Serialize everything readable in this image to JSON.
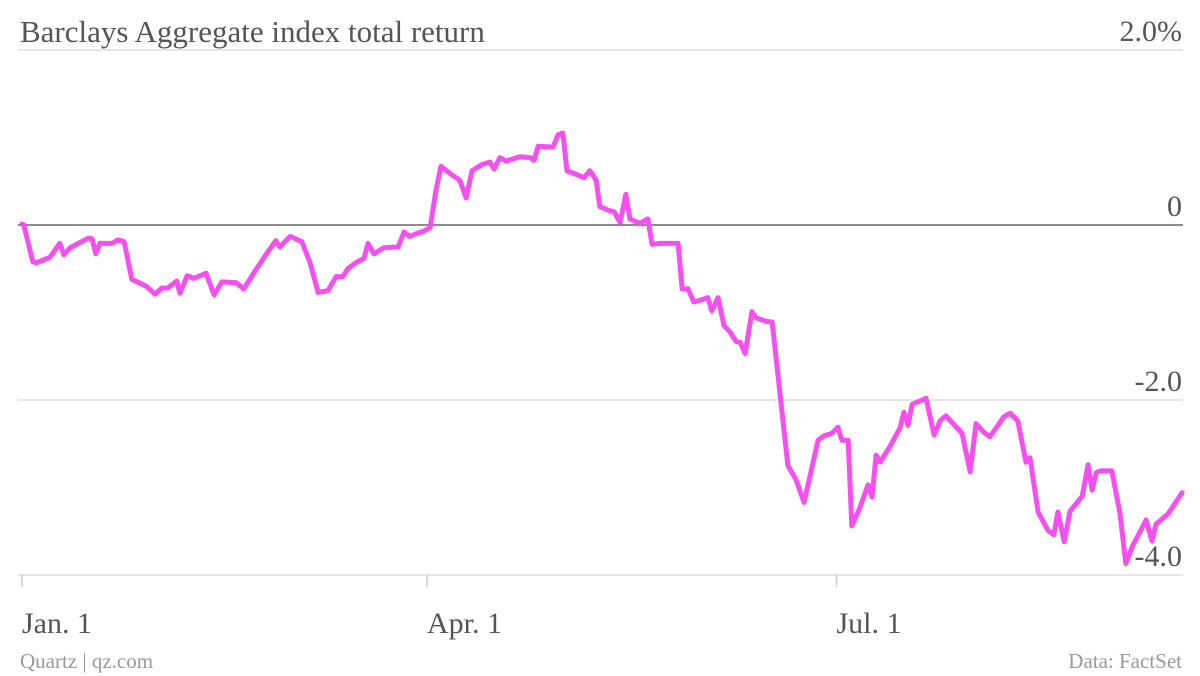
{
  "chart_data": {
    "type": "line",
    "title": "Barclays Aggregate index total return",
    "credit": "Quartz | qz.com",
    "source": "Data: FactSet",
    "xlim": [
      0,
      258
    ],
    "xticks": [
      {
        "value": 0,
        "label": "Jan. 1"
      },
      {
        "value": 90,
        "label": "Apr. 1"
      },
      {
        "value": 181,
        "label": "Jul. 1"
      }
    ],
    "ylim": [
      -4,
      2
    ],
    "yticks": [
      {
        "value": 2,
        "label": "2.0%"
      },
      0,
      {
        "value": -2,
        "label": "-2.0"
      },
      {
        "value": -4,
        "label": "-4.0"
      }
    ],
    "grid": true,
    "series": [
      {
        "color": "#f550ef",
        "x": [
          0,
          0.4,
          2.4,
          3.3,
          6.2,
          8.4,
          9.3,
          10.7,
          13.3,
          14.7,
          15.6,
          16.4,
          17.3,
          20,
          21.3,
          22.7,
          24.4,
          27.6,
          29.6,
          31.1,
          32.4,
          34.4,
          35.1,
          36.7,
          38.2,
          39.6,
          40.9,
          42.7,
          44.4,
          47.6,
          49.3,
          52,
          54.2,
          56.4,
          57.3,
          59.6,
          62.2,
          64,
          65.8,
          68,
          69.8,
          71.3,
          72.4,
          74.2,
          76,
          76.9,
          78.2,
          80.4,
          83.6,
          84.9,
          86.2,
          87.6,
          89.3,
          90.7,
          92,
          93.1,
          95.1,
          97.3,
          98.7,
          100,
          102.2,
          104,
          104.9,
          106.2,
          107.6,
          110.7,
          112.9,
          113.8,
          114.7,
          118,
          119.1,
          120.2,
          121.1,
          123.6,
          124.9,
          126.2,
          127.6,
          128.4,
          130.2,
          131.6,
          132.9,
          134.2,
          135.1,
          137.3,
          139.1,
          140,
          141.8,
          145.8,
          146.7,
          148,
          149.3,
          150.7,
          152.4,
          153.3,
          154.7,
          156,
          157.3,
          158.7,
          159.6,
          160.7,
          162.2,
          163.1,
          165.3,
          166.7,
          170.2,
          172,
          173.8,
          176.9,
          178.2,
          180,
          181.3,
          182.2,
          183.6,
          184.4,
          186.2,
          188,
          188.9,
          189.8,
          190.7,
          192.9,
          195.1,
          196,
          196.9,
          197.8,
          200.9,
          202.7,
          204,
          205.3,
          208.9,
          210.7,
          212,
          213.8,
          215.1,
          218.2,
          219.6,
          221.3,
          223.1,
          224,
          225.8,
          228,
          229.3,
          230.2,
          231.6,
          232.9,
          235.6,
          236.9,
          237.8,
          238.7,
          239.6,
          242.2,
          244,
          245.3,
          246.7,
          248.4,
          249.8,
          251.1,
          252,
          254.7,
          257.8
        ],
        "values": [
          0.01,
          0,
          -0.42,
          -0.43,
          -0.37,
          -0.21,
          -0.34,
          -0.26,
          -0.19,
          -0.15,
          -0.16,
          -0.33,
          -0.21,
          -0.21,
          -0.17,
          -0.19,
          -0.62,
          -0.7,
          -0.79,
          -0.72,
          -0.72,
          -0.64,
          -0.78,
          -0.58,
          -0.61,
          -0.58,
          -0.55,
          -0.8,
          -0.65,
          -0.66,
          -0.73,
          -0.51,
          -0.34,
          -0.18,
          -0.25,
          -0.13,
          -0.19,
          -0.43,
          -0.77,
          -0.75,
          -0.59,
          -0.59,
          -0.5,
          -0.43,
          -0.38,
          -0.21,
          -0.33,
          -0.26,
          -0.25,
          -0.08,
          -0.13,
          -0.1,
          -0.07,
          -0.03,
          0.4,
          0.67,
          0.59,
          0.51,
          0.31,
          0.62,
          0.69,
          0.72,
          0.64,
          0.77,
          0.73,
          0.78,
          0.77,
          0.74,
          0.9,
          0.89,
          1.03,
          1.05,
          0.62,
          0.57,
          0.54,
          0.62,
          0.51,
          0.21,
          0.17,
          0.15,
          0.03,
          0.35,
          0.07,
          0.02,
          0.07,
          -0.22,
          -0.21,
          -0.21,
          -0.73,
          -0.73,
          -0.88,
          -0.86,
          -0.83,
          -0.98,
          -0.83,
          -1.15,
          -1.22,
          -1.33,
          -1.34,
          -1.47,
          -0.99,
          -1.06,
          -1.1,
          -1.11,
          -2.75,
          -2.91,
          -3.17,
          -2.46,
          -2.41,
          -2.38,
          -2.31,
          -2.46,
          -2.46,
          -3.44,
          -3.23,
          -2.97,
          -3.11,
          -2.63,
          -2.71,
          -2.53,
          -2.32,
          -2.14,
          -2.29,
          -2.05,
          -1.98,
          -2.4,
          -2.24,
          -2.18,
          -2.38,
          -2.82,
          -2.27,
          -2.37,
          -2.42,
          -2.19,
          -2.15,
          -2.24,
          -2.71,
          -2.66,
          -3.28,
          -3.49,
          -3.54,
          -3.28,
          -3.62,
          -3.27,
          -3.1,
          -2.74,
          -3.03,
          -2.83,
          -2.81,
          -2.81,
          -3.3,
          -3.87,
          -3.68,
          -3.51,
          -3.37,
          -3.61,
          -3.42,
          -3.3,
          -3.06
        ]
      }
    ]
  }
}
